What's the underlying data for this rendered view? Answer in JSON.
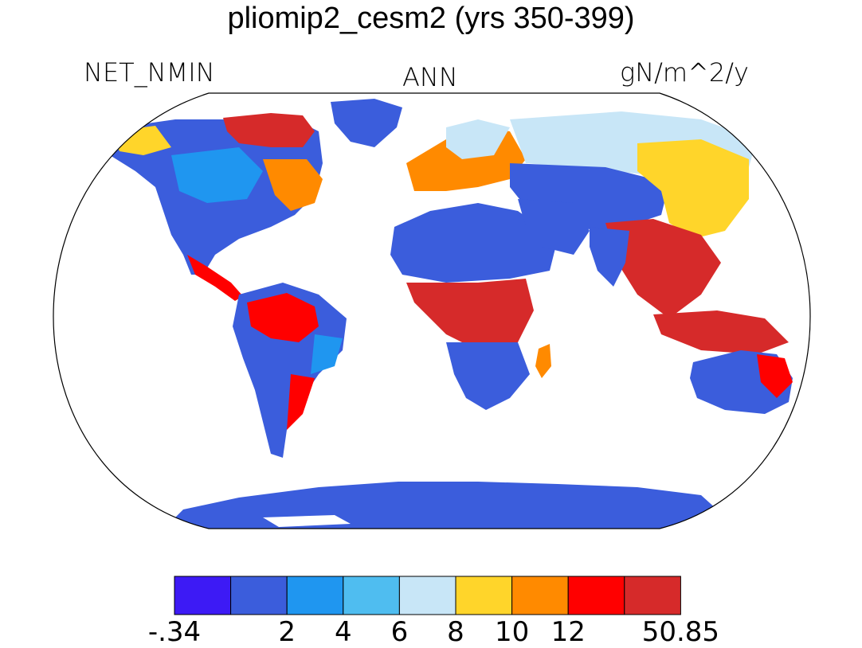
{
  "title": "pliomip2_cesm2 (yrs 350-399)",
  "left_label": "NET_NMIN",
  "center_label": "ANN",
  "right_label": "gN/m^2/y",
  "colorbar": {
    "colors": [
      "#3d1af5",
      "#3b5ddc",
      "#1f96f0",
      "#4fbdf0",
      "#c8e6f7",
      "#ffd52a",
      "#ff8a00",
      "#ff0000",
      "#d62a2a"
    ],
    "labels": [
      {
        "text": "-.34",
        "index": 0
      },
      {
        "text": "2",
        "index": 2
      },
      {
        "text": "4",
        "index": 3
      },
      {
        "text": "6",
        "index": 4
      },
      {
        "text": "8",
        "index": 5
      },
      {
        "text": "10",
        "index": 6
      },
      {
        "text": "12",
        "index": 7
      },
      {
        "text": "50.85",
        "index": 9
      }
    ]
  },
  "legend_values": [
    "-.34",
    "2",
    "4",
    "6",
    "8",
    "10",
    "12",
    "50.85"
  ]
}
